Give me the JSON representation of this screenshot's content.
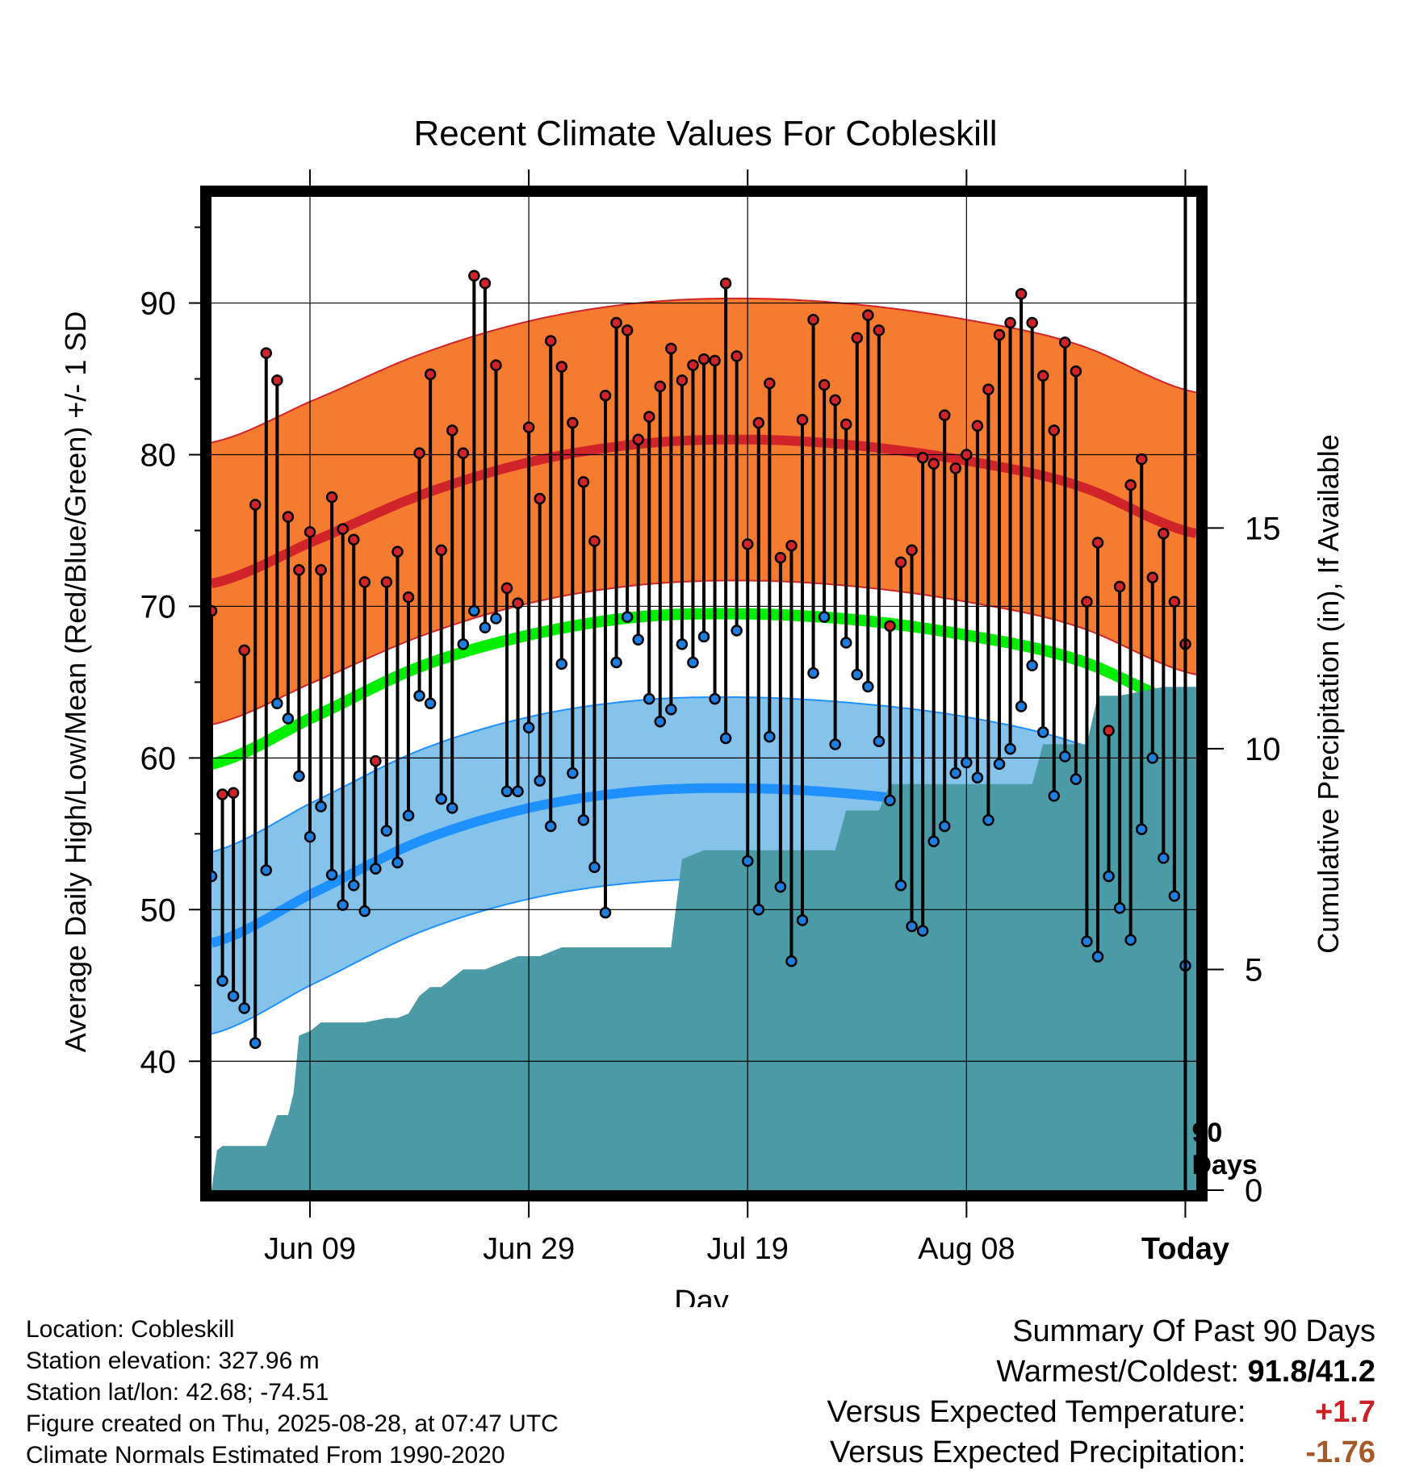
{
  "chart_data": {
    "type": "line",
    "title": "Recent Climate Values For Cobleskill",
    "xlabel": "Day",
    "ylabel": "Average Daily High/Low/Mean (Red/Blue/Green) +/- 1 SD",
    "y2label": "Cumulative Precipitation (in), If Available",
    "ylim": [
      31.5,
      97
    ],
    "y2lim": [
      0,
      22.5
    ],
    "yticks": [
      40,
      50,
      60,
      70,
      80,
      90
    ],
    "y2ticks": [
      0,
      5,
      10,
      15
    ],
    "xlim": [
      1,
      91
    ],
    "xticks": [
      {
        "day": 10,
        "label": "Jun 09"
      },
      {
        "day": 30,
        "label": "Jun 29"
      },
      {
        "day": 50,
        "label": "Jul 19"
      },
      {
        "day": 70,
        "label": "Aug 08"
      },
      {
        "day": 90,
        "label": "Today"
      }
    ],
    "today_marker": {
      "day": 90,
      "label_line1": "90",
      "label_line2": "Days"
    },
    "grid": true,
    "colors": {
      "high_band": "#f47b30",
      "high_line": "#d1232a",
      "high_edge": "#d1232a",
      "mean_line": "#00ee00",
      "low_band": "#86c3ea",
      "low_line": "#1e90ff",
      "low_edge": "#1e90ff",
      "precip_fill": "#4a9ba5",
      "high_dot": "#d1232a",
      "low_dot": "#1e7fe0"
    },
    "normals": {
      "days": [
        1,
        10,
        20,
        30,
        40,
        50,
        60,
        70,
        80,
        91
      ],
      "high_mean": [
        71.5,
        74.2,
        77.3,
        79.5,
        80.7,
        81.0,
        80.6,
        79.6,
        78.0,
        74.8
      ],
      "high_sd": 9.3,
      "low_mean": [
        47.8,
        51.0,
        54.5,
        56.7,
        57.8,
        58.0,
        57.6,
        56.7,
        55.0,
        51.8
      ],
      "low_sd": 6.0,
      "mean": [
        59.6,
        62.6,
        66.0,
        68.1,
        69.3,
        69.5,
        69.1,
        68.1,
        66.5,
        63.3
      ]
    },
    "daily_high": [
      69.7,
      57.6,
      57.7,
      67.1,
      76.7,
      86.7,
      84.9,
      75.9,
      72.4,
      74.9,
      72.4,
      77.2,
      75.1,
      74.4,
      71.6,
      59.8,
      71.6,
      73.6,
      70.6,
      80.1,
      85.3,
      73.7,
      81.6,
      80.1,
      91.8,
      91.3,
      85.9,
      71.2,
      70.2,
      81.8,
      77.1,
      87.5,
      85.8,
      82.1,
      78.2,
      74.3,
      83.9,
      88.7,
      88.2,
      81.0,
      82.5,
      84.5,
      87.0,
      84.9,
      85.9,
      86.3,
      86.2,
      91.3,
      86.5,
      74.1,
      82.1,
      84.7,
      73.2,
      74.0,
      82.3,
      88.9,
      84.6,
      83.6,
      82.0,
      87.7,
      89.2,
      88.2,
      68.7,
      72.9,
      73.7,
      79.8,
      79.4,
      82.6,
      79.1,
      80.0,
      81.9,
      84.3,
      87.9,
      88.7,
      90.6,
      88.7,
      85.2,
      81.6,
      87.4,
      85.5,
      70.3,
      74.2,
      61.8,
      71.3,
      78.0,
      79.7,
      71.9,
      74.8,
      70.3,
      67.5
    ],
    "daily_low": [
      52.2,
      45.3,
      44.3,
      43.5,
      41.2,
      52.6,
      63.6,
      62.6,
      58.8,
      54.8,
      56.8,
      52.3,
      50.3,
      51.6,
      49.9,
      52.7,
      55.2,
      53.1,
      56.2,
      64.1,
      63.6,
      57.3,
      56.7,
      67.5,
      69.7,
      68.6,
      69.2,
      57.8,
      57.8,
      62.0,
      58.5,
      55.5,
      66.2,
      59.0,
      55.9,
      52.8,
      49.8,
      66.3,
      69.3,
      67.8,
      63.9,
      62.4,
      63.2,
      67.5,
      66.3,
      68.0,
      63.9,
      61.3,
      68.4,
      53.2,
      50.0,
      61.4,
      51.5,
      46.6,
      49.3,
      65.6,
      69.3,
      60.9,
      67.6,
      65.5,
      64.7,
      61.1,
      57.2,
      51.6,
      48.9,
      48.6,
      54.5,
      55.5,
      59.0,
      59.7,
      58.7,
      55.9,
      59.6,
      60.6,
      63.4,
      66.1,
      61.7,
      57.5,
      60.1,
      58.6,
      47.9,
      46.9,
      52.2,
      50.1,
      48.0,
      55.3,
      60.0,
      53.4,
      50.9,
      46.3
    ],
    "cumulative_precip": {
      "days": [
        1,
        1.5,
        2,
        6,
        7,
        8,
        8.5,
        9,
        10,
        11,
        12,
        14,
        15,
        17,
        18,
        19,
        20,
        21,
        22,
        24,
        26,
        29,
        31,
        33,
        36,
        38,
        40,
        42,
        43,
        44,
        46,
        47,
        49,
        50,
        52,
        54,
        57,
        58,
        59,
        61,
        62,
        63,
        65,
        67,
        69,
        71,
        73,
        76,
        77,
        81,
        82,
        83,
        84,
        86,
        88,
        90,
        91
      ],
      "values": [
        0,
        0.9,
        1.0,
        1.0,
        1.7,
        1.7,
        2.2,
        3.5,
        3.6,
        3.8,
        3.8,
        3.8,
        3.8,
        3.9,
        3.9,
        4.0,
        4.4,
        4.6,
        4.6,
        5.0,
        5.0,
        5.3,
        5.3,
        5.5,
        5.5,
        5.5,
        5.5,
        5.5,
        5.5,
        7.5,
        7.7,
        7.7,
        7.7,
        7.7,
        7.7,
        7.7,
        7.7,
        7.7,
        8.6,
        8.6,
        8.6,
        9.2,
        9.2,
        9.2,
        9.2,
        9.2,
        9.2,
        9.2,
        10.1,
        10.1,
        11.2,
        11.2,
        11.2,
        11.3,
        11.4,
        11.4,
        11.4
      ]
    }
  },
  "meta": {
    "location": "Location: Cobleskill",
    "elevation": "Station elevation: 327.96 m",
    "latlon": "Station lat/lon: 42.68; -74.51",
    "created": "Figure created on Thu, 2025-08-28, at 07:47 UTC",
    "normals": "Climate Normals Estimated From 1990-2020"
  },
  "summary": {
    "title": "Summary Of Past 90 Days",
    "warm_cold_label": "Warmest/Coldest:",
    "warm_cold_value": "91.8/41.2",
    "temp_label": "Versus Expected Temperature:",
    "temp_value": "+1.7",
    "temp_color": "#cc1f26",
    "precip_label": "Versus Expected Precipitation:",
    "precip_value": "-1.76",
    "precip_color": "#a65a2a"
  }
}
